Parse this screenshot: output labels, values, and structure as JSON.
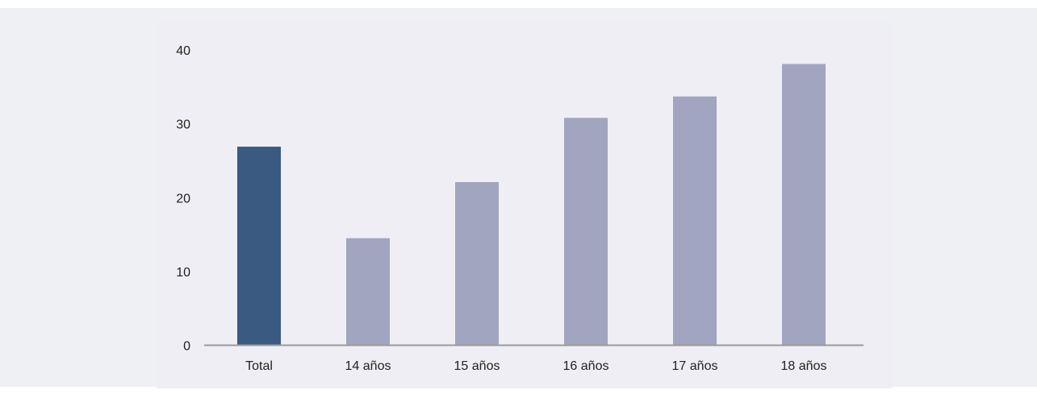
{
  "chart_data": {
    "type": "bar",
    "categories": [
      "Total",
      "14 años",
      "15 años",
      "16 años",
      "17 años",
      "18 años"
    ],
    "values": [
      26.9,
      14.5,
      22.1,
      30.8,
      33.7,
      38.1
    ],
    "highlight_index": 0,
    "y_ticks": [
      "0",
      "10",
      "20",
      "30",
      "40"
    ],
    "ylim": [
      0,
      40
    ],
    "grid": false,
    "colors": {
      "highlight": "#3b5a82",
      "default": "#a1a5c0",
      "axis": "#9a9a9a"
    }
  }
}
